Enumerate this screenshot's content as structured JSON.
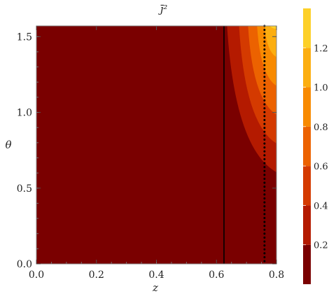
{
  "chart_data": {
    "type": "heatmap",
    "title": "j̄²",
    "xlabel": "z",
    "ylabel": "θ",
    "xlim": [
      0.0,
      0.8
    ],
    "ylim": [
      0.0,
      1.5708
    ],
    "x_ticks": [
      "0.0",
      "0.2",
      "0.4",
      "0.6",
      "0.8"
    ],
    "y_ticks": [
      "0.0",
      "0.5",
      "1.0",
      "1.5"
    ],
    "colorbar": {
      "levels": [
        0.0,
        0.2,
        0.4,
        0.6,
        0.8,
        1.0,
        1.2,
        1.4
      ],
      "tick_labels": [
        "0.2",
        "0.4",
        "0.6",
        "0.8",
        "1.0",
        "1.2"
      ],
      "colors": [
        "#7a0000",
        "#b41a00",
        "#d43a00",
        "#ec6200",
        "#f88a00",
        "#fcae10",
        "#fdd028"
      ]
    },
    "regions": [
      {
        "level": "0.0-0.2",
        "description": "z below 0.625, and z above 0.625 at low theta"
      },
      {
        "level": "0.2-0.4",
        "boundary_at_theta_max_z": 0.635
      },
      {
        "level": "0.4-0.6",
        "boundary_at_theta_max_z": 0.675
      },
      {
        "level": "0.6-0.8",
        "boundary_at_theta_max_z": 0.705
      },
      {
        "level": "0.8-1.0",
        "boundary_at_theta_max_z": 0.735
      },
      {
        "level": "1.0-1.2",
        "boundary_at_theta_max_z": 0.76
      },
      {
        "level": "1.2-1.4",
        "boundary_at_theta_max_z": 0.775
      }
    ],
    "vertical_lines": [
      {
        "z": 0.625,
        "style": "solid"
      },
      {
        "z": 0.76,
        "style": "dotted"
      }
    ]
  }
}
